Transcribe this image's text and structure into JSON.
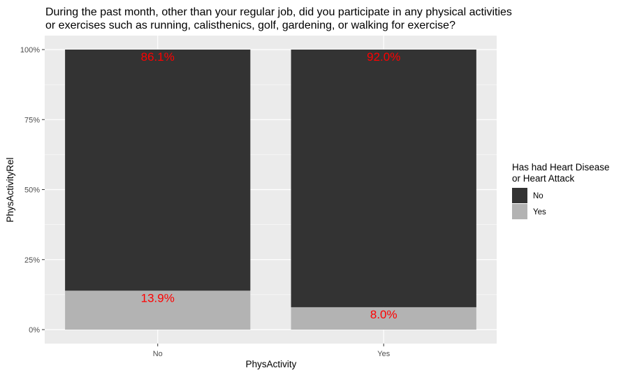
{
  "chart_data": {
    "type": "bar",
    "stacked": true,
    "title_lines": [
      "During the past month, other than your regular job, did you participate in any physical activities",
      "or exercises such as running, calisthenics, golf, gardening, or walking for exercise?"
    ],
    "xlabel": "PhysActivity",
    "ylabel": "PhysActivityRel",
    "categories": [
      "No",
      "Yes"
    ],
    "ylim": [
      0,
      1
    ],
    "yticks": [
      {
        "value": 0,
        "label": "0%"
      },
      {
        "value": 0.25,
        "label": "25%"
      },
      {
        "value": 0.5,
        "label": "50%"
      },
      {
        "value": 0.75,
        "label": "75%"
      },
      {
        "value": 1,
        "label": "100%"
      }
    ],
    "series": [
      {
        "name": "Yes",
        "color": "#b3b3b3",
        "values": [
          0.139,
          0.08
        ],
        "labels": [
          "13.9%",
          "8.0%"
        ]
      },
      {
        "name": "No",
        "color": "#333333",
        "values": [
          0.861,
          0.92
        ],
        "labels": [
          "86.1%",
          "92.0%"
        ]
      }
    ],
    "label_color": "#ff0000",
    "legend": {
      "title_lines": [
        "Has had Heart Disease",
        "or Heart Attack"
      ],
      "position": "right",
      "entries": [
        {
          "label": "No",
          "color": "#333333"
        },
        {
          "label": "Yes",
          "color": "#b3b3b3"
        }
      ]
    },
    "grid": true,
    "panel_background": "#ebebeb"
  }
}
